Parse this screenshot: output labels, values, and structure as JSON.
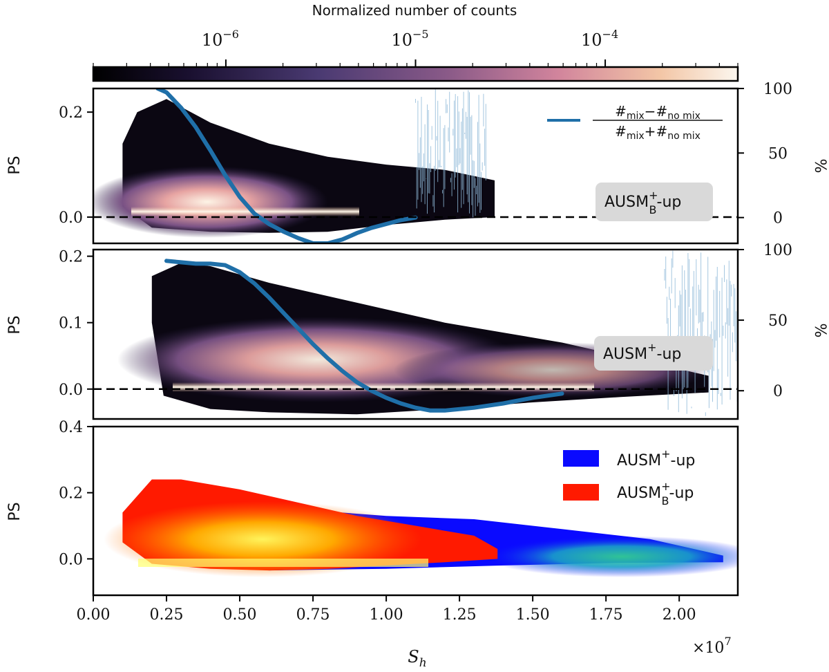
{
  "colorbar": {
    "title": "Normalized number of counts",
    "scale": "log",
    "range": [
      2e-07,
      0.0005
    ],
    "ticks": [
      {
        "base": "10",
        "exp": "−6",
        "value": 1e-06
      },
      {
        "base": "10",
        "exp": "−5",
        "value": 1e-05
      },
      {
        "base": "10",
        "exp": "−4",
        "value": 0.0001
      }
    ]
  },
  "chart_data": [
    {
      "type": "heatmap",
      "name": "panel-1",
      "ylabel": "PS",
      "y2label": "%",
      "x_range": [
        0,
        22000000
      ],
      "ylim": [
        -0.05,
        0.245
      ],
      "yticks": [
        {
          "label": "0.0",
          "value": 0.0
        },
        {
          "label": "0.2",
          "value": 0.2
        }
      ],
      "y2lim": [
        -20,
        100
      ],
      "y2ticks": [
        {
          "label": "0",
          "value": 0
        },
        {
          "label": "50",
          "value": 50
        },
        {
          "label": "100",
          "value": 100
        }
      ],
      "label_box": {
        "base": "AUSM",
        "sup": "+",
        "sub": "B",
        "suffix": "-up"
      },
      "legend": {
        "num_a": "#",
        "num_a_sub": "mix",
        "num_op": "−",
        "num_b": "#",
        "num_b_sub": "no mix",
        "den_a": "#",
        "den_a_sub": "mix",
        "den_op": "+",
        "den_b": "#",
        "den_b_sub": "no mix"
      },
      "cloud_upper": [
        [
          1.0,
          0.14
        ],
        [
          1.5,
          0.2
        ],
        [
          2.5,
          0.225
        ],
        [
          4.0,
          0.18
        ],
        [
          6.0,
          0.14
        ],
        [
          8.0,
          0.115
        ],
        [
          10.0,
          0.1
        ],
        [
          12.0,
          0.09
        ],
        [
          13.7,
          0.07
        ]
      ],
      "cloud_lower": [
        [
          13.7,
          0.0
        ],
        [
          12.0,
          -0.005
        ],
        [
          10.0,
          -0.015
        ],
        [
          8.0,
          -0.028
        ],
        [
          6.0,
          -0.03
        ],
        [
          4.0,
          -0.028
        ],
        [
          2.0,
          -0.02
        ],
        [
          1.0,
          0.02
        ]
      ],
      "mix_curve_x": [
        2.2,
        2.5,
        3.0,
        3.5,
        4.0,
        4.5,
        5.0,
        5.5,
        6.0,
        6.5,
        7.0,
        7.5,
        8.0,
        8.5,
        9.0,
        9.5,
        10.0,
        10.5,
        11.0
      ],
      "mix_curve_pct": [
        100,
        97,
        85,
        70,
        52,
        33,
        16,
        3,
        -5,
        -11,
        -16,
        -20,
        -20,
        -17,
        -12,
        -8,
        -5,
        -2,
        0
      ],
      "noisy_region": {
        "x": [
          11.0,
          13.4
        ],
        "pct": [
          0,
          100
        ]
      },
      "baseline": 0.0
    },
    {
      "type": "heatmap",
      "name": "panel-2",
      "ylabel": "PS",
      "y2label": "%",
      "x_range": [
        0,
        22000000
      ],
      "ylim": [
        -0.045,
        0.21
      ],
      "yticks": [
        {
          "label": "0.0",
          "value": 0.0
        },
        {
          "label": "0.1",
          "value": 0.1
        },
        {
          "label": "0.2",
          "value": 0.2
        }
      ],
      "y2lim": [
        -20,
        100
      ],
      "y2ticks": [
        {
          "label": "0",
          "value": 0
        },
        {
          "label": "50",
          "value": 50
        },
        {
          "label": "100",
          "value": 100
        }
      ],
      "label_box": {
        "base": "AUSM",
        "sup": "+",
        "sub": "",
        "suffix": "-up"
      },
      "cloud_upper": [
        [
          2.0,
          0.17
        ],
        [
          3.0,
          0.19
        ],
        [
          4.0,
          0.185
        ],
        [
          6.0,
          0.16
        ],
        [
          8.0,
          0.14
        ],
        [
          10.0,
          0.12
        ],
        [
          12.0,
          0.1
        ],
        [
          14.0,
          0.085
        ],
        [
          16.0,
          0.07
        ],
        [
          18.0,
          0.05
        ],
        [
          20.0,
          0.03
        ],
        [
          21.0,
          0.02
        ]
      ],
      "cloud_lower": [
        [
          21.0,
          -0.005
        ],
        [
          18.0,
          -0.012
        ],
        [
          15.0,
          -0.02
        ],
        [
          12.0,
          -0.03
        ],
        [
          9.0,
          -0.038
        ],
        [
          6.0,
          -0.035
        ],
        [
          4.0,
          -0.03
        ],
        [
          2.4,
          -0.01
        ],
        [
          2.0,
          0.1
        ]
      ],
      "mix_curve_x": [
        2.5,
        3.0,
        3.5,
        4.0,
        4.5,
        5.0,
        5.5,
        6.0,
        6.5,
        7.0,
        7.5,
        8.0,
        8.5,
        9.0,
        9.5,
        10.0,
        10.5,
        11.0,
        11.5,
        12.0,
        13.0,
        14.0,
        15.0,
        16.0
      ],
      "mix_curve_pct": [
        92,
        91,
        90,
        90,
        89,
        84,
        76,
        66,
        55,
        44,
        33,
        23,
        14,
        6,
        0,
        -5,
        -9,
        -12,
        -14,
        -14,
        -12,
        -9,
        -5,
        -2
      ],
      "noisy_region": {
        "x": [
          19.5,
          22.0
        ],
        "pct": [
          -20,
          100
        ]
      },
      "baseline": 0.0
    },
    {
      "type": "heatmap",
      "name": "panel-3",
      "ylabel": "PS",
      "xlabel": "S",
      "xlabel_sub": "h",
      "x_range": [
        0,
        22000000
      ],
      "x_multiplier": {
        "base": "×10",
        "exp": "7"
      },
      "xticks": [
        {
          "label": "0.00",
          "value": 0.0
        },
        {
          "label": "0.25",
          "value": 0.25
        },
        {
          "label": "0.50",
          "value": 0.5
        },
        {
          "label": "0.75",
          "value": 0.75
        },
        {
          "label": "1.00",
          "value": 1.0
        },
        {
          "label": "1.25",
          "value": 1.25
        },
        {
          "label": "1.50",
          "value": 1.5
        },
        {
          "label": "1.75",
          "value": 1.75
        },
        {
          "label": "2.00",
          "value": 2.0
        }
      ],
      "ylim": [
        -0.11,
        0.4
      ],
      "yticks": [
        {
          "label": "0.0",
          "value": 0.0
        },
        {
          "label": "0.2",
          "value": 0.2
        },
        {
          "label": "0.4",
          "value": 0.4
        }
      ],
      "series": [
        {
          "name": "AUSM+-up",
          "label": {
            "base": "AUSM",
            "sup": "+",
            "sub": "",
            "suffix": "-up"
          },
          "color": "#0a0aff",
          "upper": [
            [
              4.0,
              0.19
            ],
            [
              7.0,
              0.15
            ],
            [
              10.0,
              0.13
            ],
            [
              13.0,
              0.12
            ],
            [
              16.0,
              0.09
            ],
            [
              19.0,
              0.06
            ],
            [
              21.5,
              0.01
            ]
          ],
          "lower": [
            [
              21.5,
              -0.01
            ],
            [
              18.0,
              -0.012
            ],
            [
              14.0,
              -0.02
            ],
            [
              10.0,
              -0.03
            ],
            [
              6.0,
              -0.035
            ],
            [
              4.0,
              -0.02
            ]
          ]
        },
        {
          "name": "AUSMB+-up",
          "label": {
            "base": "AUSM",
            "sup": "+",
            "sub": "B",
            "suffix": "-up"
          },
          "color": "#ff1a00",
          "upper": [
            [
              1.0,
              0.14
            ],
            [
              2.0,
              0.24
            ],
            [
              3.0,
              0.24
            ],
            [
              5.0,
              0.21
            ],
            [
              7.0,
              0.17
            ],
            [
              9.0,
              0.13
            ],
            [
              11.0,
              0.1
            ],
            [
              13.0,
              0.07
            ],
            [
              13.8,
              0.03
            ]
          ],
          "lower": [
            [
              13.8,
              0.0
            ],
            [
              12.0,
              -0.01
            ],
            [
              10.0,
              -0.02
            ],
            [
              8.0,
              -0.03
            ],
            [
              6.0,
              -0.035
            ],
            [
              4.0,
              -0.03
            ],
            [
              2.0,
              -0.015
            ],
            [
              1.0,
              0.05
            ]
          ]
        }
      ]
    }
  ]
}
